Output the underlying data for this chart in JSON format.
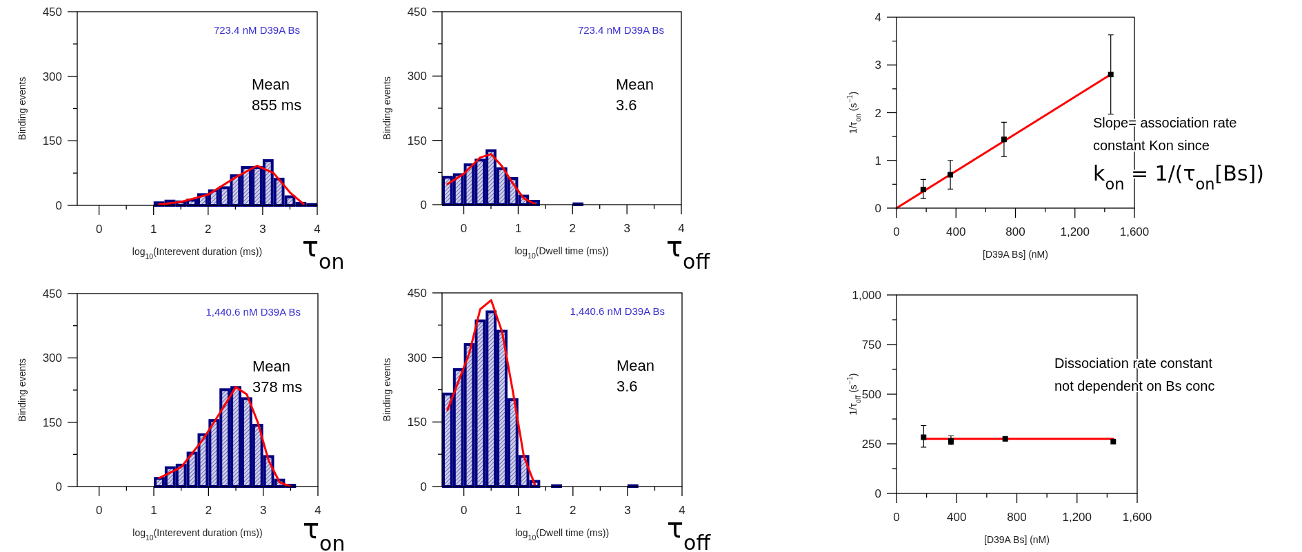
{
  "chart_data": [
    {
      "type": "histogram",
      "xlabel": "log$_{10}$(Interevent duration (ms))",
      "ylabel": "Binding events",
      "annotations": [
        "723.4 nM D39A Bs",
        "Mean\n855 ms",
        "τ$_{on}$"
      ],
      "bins": [
        -0.4,
        -0.2,
        0,
        0.2,
        0.4,
        0.6,
        0.8,
        1,
        1.2,
        1.4,
        1.6,
        1.8,
        2,
        2.2,
        2.4,
        2.6,
        2.8,
        3,
        3.2,
        3.4,
        3.6,
        3.8,
        4
      ],
      "series": [
        {
          "type": "histogram",
          "color": "#000080",
          "values": [
            0,
            0,
            0,
            0,
            0,
            0,
            0,
            6,
            10,
            8,
            12,
            25,
            34,
            41,
            69,
            88,
            88,
            104,
            61,
            20,
            5,
            2
          ]
        },
        {
          "type": "line",
          "color": "#ff0000",
          "x": [
            1.1,
            1.5,
            2,
            2.5,
            2.9,
            3.2,
            3.5,
            3.75
          ],
          "values": [
            2,
            8,
            25,
            65,
            92,
            75,
            30,
            3
          ]
        }
      ],
      "xlim": [
        -0.4,
        4
      ],
      "ylim": [
        0,
        450
      ],
      "xticks": [
        0,
        {
          "value": 0.5,
          "label": null
        },
        1,
        {
          "value": 1.5,
          "label": null
        },
        2,
        {
          "value": 2.5,
          "label": null
        },
        3,
        {
          "value": 3.5,
          "label": null
        },
        4
      ],
      "yticks": [
        0,
        {
          "value": 75,
          "label": null
        },
        150,
        {
          "value": 225,
          "label": null
        },
        300,
        {
          "value": 375,
          "label": null
        },
        450
      ],
      "grid": false
    },
    {
      "type": "histogram",
      "xlabel": "log$_{10}$(Dwell time (ms))",
      "ylabel": "Binding events",
      "annotations": [
        "723.4 nM D39A Bs",
        "Mean\n3.6",
        "τ$_{off}$"
      ],
      "bins": [
        -0.4,
        -0.2,
        0,
        0.2,
        0.4,
        0.6,
        0.8,
        1,
        1.2,
        1.4,
        1.6,
        1.8,
        2,
        2.2,
        2.4,
        2.6,
        2.8,
        3,
        3.2,
        3.4,
        3.6,
        3.8,
        4
      ],
      "series": [
        {
          "type": "histogram",
          "color": "#000080",
          "values": [
            64,
            70,
            93,
            104,
            126,
            84,
            61,
            20,
            8,
            0,
            0,
            0,
            2,
            0,
            0,
            0,
            0,
            0,
            0,
            0,
            0,
            0
          ]
        },
        {
          "type": "line",
          "color": "#ff0000",
          "x": [
            -0.3,
            0,
            0.3,
            0.5,
            0.7,
            0.9,
            1.1,
            1.3
          ],
          "values": [
            48,
            72,
            110,
            118,
            90,
            50,
            15,
            2
          ]
        }
      ],
      "xlim": [
        -0.4,
        4
      ],
      "ylim": [
        0,
        450
      ],
      "xticks": [
        0,
        {
          "value": 0.5,
          "label": null
        },
        1,
        {
          "value": 1.5,
          "label": null
        },
        2,
        {
          "value": 2.5,
          "label": null
        },
        3,
        {
          "value": 3.5,
          "label": null
        },
        4
      ],
      "yticks": [
        0,
        {
          "value": 75,
          "label": null
        },
        150,
        {
          "value": 225,
          "label": null
        },
        300,
        {
          "value": 375,
          "label": null
        },
        450
      ],
      "grid": false
    },
    {
      "type": "scatter",
      "xlabel": "[D39A Bs] (nM)",
      "ylabel": "1/τ$_{on}$ (s$^{−1}$)",
      "annotations": [
        "Slope= association rate\nconstant Kon since",
        "k$_{on}$ = 1/(τ$_{on}$[Bs])"
      ],
      "series": [
        {
          "type": "line",
          "color": "#ff0000",
          "x": [
            0,
            1441
          ],
          "values": [
            0,
            2.8
          ]
        },
        {
          "type": "scatter",
          "color": "#000000",
          "marker": "square",
          "x": [
            180,
            362,
            723,
            1441
          ],
          "values": [
            0.39,
            0.7,
            1.44,
            2.8
          ],
          "errors": [
            [
              0.2,
              0.6
            ],
            [
              0.4,
              1.0
            ],
            [
              1.08,
              1.8
            ],
            [
              1.97,
              3.63
            ]
          ]
        }
      ],
      "xlim": [
        0,
        1600
      ],
      "ylim": [
        0,
        4
      ],
      "xticks": [
        0,
        {
          "value": 200,
          "label": null
        },
        400,
        {
          "value": 600,
          "label": null
        },
        800,
        {
          "value": 1000,
          "label": null
        },
        {
          "value": 1200,
          "label": "1,200"
        },
        {
          "value": 1400,
          "label": null
        },
        {
          "value": 1600,
          "label": "1,600"
        }
      ],
      "yticks": [
        0,
        {
          "value": 0.5,
          "label": null
        },
        1,
        {
          "value": 1.5,
          "label": null
        },
        2,
        {
          "value": 2.5,
          "label": null
        },
        3,
        {
          "value": 3.5,
          "label": null
        },
        4
      ],
      "grid": false
    },
    {
      "type": "histogram",
      "xlabel": "log$_{10}$(Interevent duration (ms))",
      "ylabel": "Binding events",
      "annotations": [
        "1,440.6 nM D39A Bs",
        "Mean\n378 ms",
        "τ$_{on}$"
      ],
      "bins": [
        -0.4,
        -0.2,
        0,
        0.2,
        0.4,
        0.6,
        0.8,
        1,
        1.2,
        1.4,
        1.6,
        1.8,
        2,
        2.2,
        2.4,
        2.6,
        2.8,
        3,
        3.2,
        3.4,
        3.6,
        3.8,
        4
      ],
      "series": [
        {
          "type": "histogram",
          "color": "#000080",
          "values": [
            0,
            0,
            0,
            0,
            0,
            0,
            0,
            19,
            44,
            50,
            78,
            121,
            154,
            226,
            231,
            205,
            143,
            70,
            15,
            3,
            0,
            0
          ]
        },
        {
          "type": "line",
          "color": "#ff0000",
          "x": [
            1.1,
            1.5,
            1.9,
            2.2,
            2.5,
            2.7,
            2.9,
            3.1,
            3.3,
            3.5
          ],
          "values": [
            20,
            45,
            110,
            170,
            232,
            215,
            150,
            60,
            10,
            0
          ]
        }
      ],
      "xlim": [
        -0.4,
        4
      ],
      "ylim": [
        0,
        450
      ],
      "xticks": [
        0,
        {
          "value": 0.5,
          "label": null
        },
        1,
        {
          "value": 1.5,
          "label": null
        },
        2,
        {
          "value": 2.5,
          "label": null
        },
        3,
        {
          "value": 3.5,
          "label": null
        },
        4
      ],
      "yticks": [
        0,
        {
          "value": 75,
          "label": null
        },
        150,
        {
          "value": 225,
          "label": null
        },
        300,
        {
          "value": 375,
          "label": null
        },
        450
      ],
      "grid": false
    },
    {
      "type": "histogram",
      "xlabel": "log$_{10}$(Dwell time (ms))",
      "ylabel": "Binding events",
      "annotations": [
        "1,440.6 nM D39A Bs",
        "Mean\n3.6",
        "τ$_{off}$"
      ],
      "bins": [
        -0.4,
        -0.2,
        0,
        0.2,
        0.4,
        0.6,
        0.8,
        1,
        1.2,
        1.4,
        1.6,
        1.8,
        2,
        2.2,
        2.4,
        2.6,
        2.8,
        3,
        3.2,
        3.4,
        3.6,
        3.8,
        4
      ],
      "series": [
        {
          "type": "histogram",
          "color": "#000080",
          "values": [
            215,
            272,
            330,
            385,
            406,
            361,
            202,
            70,
            12,
            0,
            2,
            0,
            0,
            0,
            0,
            0,
            0,
            2,
            0,
            0,
            0,
            0
          ]
        },
        {
          "type": "line",
          "color": "#ff0000",
          "x": [
            -0.3,
            0.1,
            0.3,
            0.5,
            0.7,
            0.9,
            1.1,
            1.3
          ],
          "values": [
            178,
            310,
            412,
            433,
            360,
            220,
            70,
            5
          ]
        }
      ],
      "xlim": [
        -0.4,
        4
      ],
      "ylim": [
        0,
        450
      ],
      "xticks": [
        0,
        {
          "value": 0.5,
          "label": null
        },
        1,
        {
          "value": 1.5,
          "label": null
        },
        2,
        {
          "value": 2.5,
          "label": null
        },
        3,
        {
          "value": 3.5,
          "label": null
        },
        4
      ],
      "yticks": [
        0,
        {
          "value": 75,
          "label": null
        },
        150,
        {
          "value": 225,
          "label": null
        },
        300,
        {
          "value": 375,
          "label": null
        },
        450
      ],
      "grid": false
    },
    {
      "type": "scatter",
      "xlabel": "[D39A Bs] (nM)",
      "ylabel": "1/τ$_{off}$ (s$^{−1}$)",
      "annotations": [
        "Dissociation rate constant\nnot dependent on Bs conc"
      ],
      "series": [
        {
          "type": "line",
          "color": "#ff0000",
          "x": [
            180,
            1441
          ],
          "values": [
            275,
            275
          ]
        },
        {
          "type": "scatter",
          "color": "#000000",
          "marker": "square",
          "x": [
            180,
            362,
            723,
            1441
          ],
          "values": [
            283,
            264,
            275,
            261
          ],
          "errors": [
            [
              233,
              342
            ],
            [
              246,
              290
            ],
            null,
            null
          ]
        }
      ],
      "xlim": [
        0,
        1600
      ],
      "ylim": [
        0,
        1000
      ],
      "xticks": [
        0,
        {
          "value": 200,
          "label": null
        },
        400,
        {
          "value": 600,
          "label": null
        },
        800,
        {
          "value": 1000,
          "label": null
        },
        {
          "value": 1200,
          "label": "1,200"
        },
        {
          "value": 1400,
          "label": null
        },
        {
          "value": 1600,
          "label": "1,600"
        }
      ],
      "yticks": [
        0,
        {
          "value": 125,
          "label": null
        },
        250,
        {
          "value": 375,
          "label": null
        },
        500,
        {
          "value": 625,
          "label": null
        },
        750,
        {
          "value": 875,
          "label": null
        },
        {
          "value": 1000,
          "label": "1,000"
        }
      ],
      "grid": false
    }
  ]
}
